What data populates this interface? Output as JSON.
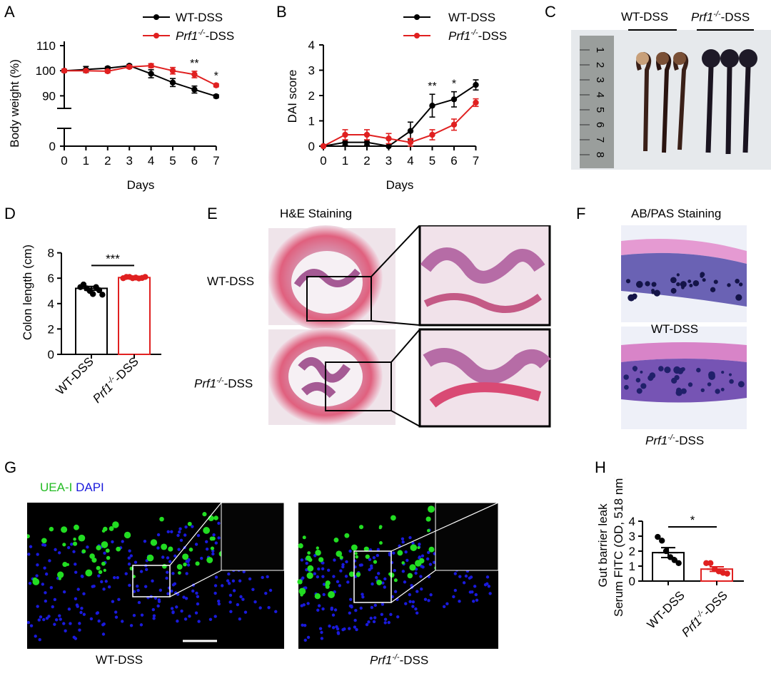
{
  "panels": {
    "A": "A",
    "B": "B",
    "C": "C",
    "D": "D",
    "E": "E",
    "F": "F",
    "G": "G",
    "H": "H"
  },
  "strain": {
    "prefix": "Prf1",
    "sup": "-/-",
    "suffix": "-DSS",
    "wt": "WT-DSS"
  },
  "colors": {
    "wt": "#000000",
    "ko": "#e02020",
    "uea": "#22dd22",
    "dapi": "#1a1adc"
  },
  "panel_c": {
    "ruler_digits": [
      "1",
      "2",
      "3",
      "4",
      "5",
      "6",
      "7",
      "8"
    ]
  },
  "panel_e": {
    "title": "H&E Staining"
  },
  "panel_f": {
    "title": "AB/PAS Staining"
  },
  "panel_g": {
    "stain_uea": "UEA-I",
    "stain_dapi": "DAPI"
  },
  "chart_data": [
    {
      "panel": "A",
      "type": "line",
      "xlabel": "Days",
      "ylabel": "Body weight (%)",
      "x": [
        0,
        1,
        2,
        3,
        4,
        5,
        6,
        7
      ],
      "yticks": [
        0,
        90,
        100,
        110
      ],
      "axis_break": true,
      "series": [
        {
          "name": "WT-DSS",
          "color": "#000000",
          "values": [
            100,
            100.5,
            101,
            102,
            98.8,
            95.3,
            92.5,
            89.8
          ],
          "err": [
            0.6,
            1.2,
            0.6,
            0.5,
            1.6,
            1.6,
            1.4,
            0.6
          ]
        },
        {
          "name": "Prf1-/--DSS",
          "color": "#e02020",
          "values": [
            100,
            100,
            99.8,
            101.5,
            102,
            100,
            98.5,
            94.2
          ],
          "err": [
            0.5,
            0.5,
            0.6,
            0.6,
            0.8,
            1.3,
            1.3,
            0.6
          ]
        }
      ],
      "annotations": [
        {
          "x": 6,
          "text": "**"
        },
        {
          "x": 7,
          "text": "*"
        }
      ]
    },
    {
      "panel": "B",
      "type": "line",
      "xlabel": "Days",
      "ylabel": "DAI score",
      "x": [
        0,
        1,
        2,
        3,
        4,
        5,
        6,
        7
      ],
      "ylim": [
        0,
        4
      ],
      "yticks": [
        0,
        1,
        2,
        3,
        4
      ],
      "series": [
        {
          "name": "WT-DSS",
          "color": "#000000",
          "values": [
            0,
            0.15,
            0.15,
            0,
            0.6,
            1.6,
            1.85,
            2.42
          ],
          "err": [
            0,
            0.1,
            0.1,
            0,
            0.35,
            0.45,
            0.3,
            0.2
          ]
        },
        {
          "name": "Prf1-/--DSS",
          "color": "#e02020",
          "values": [
            0,
            0.45,
            0.45,
            0.3,
            0.15,
            0.45,
            0.85,
            1.72
          ],
          "err": [
            0,
            0.2,
            0.2,
            0.2,
            0.15,
            0.2,
            0.22,
            0.15
          ]
        }
      ],
      "annotations": [
        {
          "x": 5,
          "text": "**"
        },
        {
          "x": 6,
          "text": "*"
        }
      ]
    },
    {
      "panel": "D",
      "type": "bar",
      "ylabel": "Colon length (cm)",
      "ylim": [
        0,
        8
      ],
      "yticks": [
        0,
        2,
        4,
        6,
        8
      ],
      "categories": [
        "WT-DSS",
        "Prf1-/--DSS"
      ],
      "values": [
        5.2,
        6.05
      ],
      "err": [
        0.15,
        0.05
      ],
      "points": [
        [
          5.3,
          5.5,
          5.2,
          5.0,
          4.75,
          5.3,
          5.05,
          4.7
        ],
        [
          6.0,
          6.1,
          6.1,
          6.0,
          6.05,
          5.98,
          6.02,
          6.1
        ]
      ],
      "significance": "***"
    },
    {
      "panel": "H",
      "type": "bar",
      "ylabel": "Gut barrier leak",
      "ylabel2": "Serum FITC (OD, 518 nm)",
      "ylim": [
        0,
        4
      ],
      "yticks": [
        0,
        1,
        2,
        3,
        4
      ],
      "categories": [
        "WT-DSS",
        "Prf1-/--DSS"
      ],
      "values": [
        1.9,
        0.8
      ],
      "err": [
        0.33,
        0.15
      ],
      "points": [
        [
          2.95,
          2.7,
          2.0,
          1.6,
          1.4,
          1.2
        ],
        [
          1.2,
          1.2,
          0.8,
          0.65,
          0.55,
          0.5
        ]
      ],
      "significance": "*"
    }
  ]
}
